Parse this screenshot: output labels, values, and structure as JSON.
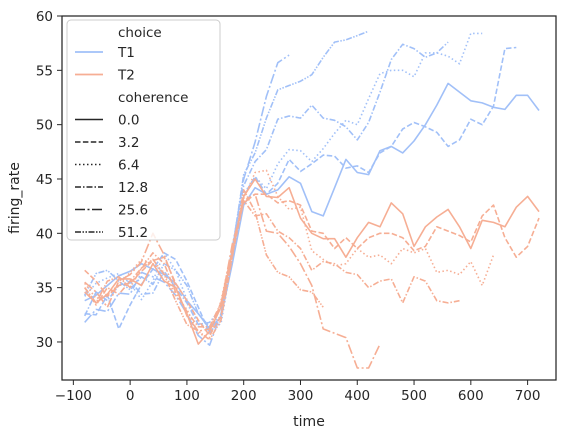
{
  "chart_data": {
    "type": "line",
    "xlabel": "time",
    "ylabel": "firing_rate",
    "xlim": [
      -120,
      750
    ],
    "ylim": [
      26.5,
      60
    ],
    "xticks": [
      -100,
      0,
      100,
      200,
      300,
      400,
      500,
      600,
      700
    ],
    "yticks": [
      30,
      35,
      40,
      45,
      50,
      55,
      60
    ],
    "grid": false,
    "legend_position": "top-left",
    "hue": {
      "title": "choice",
      "levels": [
        {
          "label": "T1",
          "color": "#a1c0f8"
        },
        {
          "label": "T2",
          "color": "#f6ae94"
        }
      ]
    },
    "style": {
      "title": "coherence",
      "levels": [
        {
          "label": "0.0",
          "dash": "solid"
        },
        {
          "label": "3.2",
          "dash": "dashed"
        },
        {
          "label": "6.4",
          "dash": "dotted"
        },
        {
          "label": "12.8",
          "dash": "dashdot"
        },
        {
          "label": "25.6",
          "dash": "longdashdot"
        },
        {
          "label": "51.2",
          "dash": "dashdotdot"
        }
      ]
    },
    "series": [
      {
        "choice": "T1",
        "coherence": "0.0",
        "x": [
          -80,
          -60,
          -40,
          -20,
          0,
          20,
          40,
          60,
          80,
          100,
          120,
          140,
          160,
          180,
          200,
          220,
          240,
          260,
          280,
          300,
          320,
          340,
          360,
          380,
          400,
          420,
          440,
          460,
          480,
          500,
          520,
          540,
          560,
          580,
          600,
          620,
          640,
          660,
          680,
          700,
          720
        ],
        "y": [
          33.8,
          34.3,
          35.2,
          36.1,
          36.5,
          37.2,
          36.7,
          36.2,
          35.4,
          33.8,
          32.6,
          31.2,
          32.3,
          37.2,
          42.6,
          44.2,
          43.6,
          44.0,
          45.2,
          44.6,
          42.0,
          41.6,
          44.2,
          46.8,
          45.6,
          45.4,
          47.6,
          48.0,
          47.4,
          48.5,
          50.0,
          51.8,
          53.8,
          53.0,
          52.2,
          52.0,
          51.6,
          51.4,
          52.7,
          52.7,
          51.3
        ]
      },
      {
        "choice": "T1",
        "coherence": "3.2",
        "x": [
          -80,
          -60,
          -40,
          -20,
          0,
          20,
          40,
          60,
          80,
          100,
          120,
          140,
          160,
          180,
          200,
          220,
          240,
          260,
          280,
          300,
          320,
          340,
          360,
          380,
          400,
          420,
          440,
          460,
          480,
          500,
          520,
          540,
          560,
          580,
          600,
          620,
          640,
          660,
          680
        ],
        "y": [
          32.6,
          32.5,
          34.3,
          31.2,
          33.4,
          35.3,
          36.7,
          38.2,
          37.6,
          35.6,
          33.2,
          30.8,
          32.3,
          37.6,
          43.4,
          45.2,
          43.6,
          44.6,
          46.8,
          45.7,
          46.4,
          47.2,
          47.1,
          46.0,
          46.2,
          45.6,
          47.4,
          48.0,
          49.6,
          50.2,
          49.8,
          49.3,
          48.0,
          48.6,
          50.5,
          50.0,
          51.7,
          57.0,
          57.1
        ]
      },
      {
        "choice": "T1",
        "coherence": "6.4",
        "x": [
          -80,
          -60,
          -40,
          -20,
          0,
          20,
          40,
          60,
          80,
          100,
          120,
          140,
          160,
          180,
          200,
          220,
          240,
          260,
          280,
          300,
          320,
          340,
          360,
          380,
          400,
          420,
          440,
          460,
          480,
          500,
          520,
          540,
          560,
          580,
          600,
          620
        ],
        "y": [
          34.2,
          35.4,
          35.9,
          36.3,
          35.4,
          33.9,
          35.6,
          38.2,
          36.6,
          33.9,
          31.8,
          31.0,
          31.7,
          37.6,
          43.6,
          45.2,
          44.1,
          46.4,
          47.7,
          47.6,
          46.6,
          47.8,
          49.2,
          50.4,
          50.0,
          52.4,
          54.7,
          55.0,
          55.0,
          54.4,
          56.6,
          56.6,
          56.3,
          55.6,
          58.4,
          58.4
        ]
      },
      {
        "choice": "T1",
        "coherence": "12.8",
        "x": [
          -80,
          -60,
          -40,
          -20,
          0,
          20,
          40,
          60,
          80,
          100,
          120,
          140,
          160,
          180,
          200,
          220,
          240,
          260,
          280,
          300,
          320,
          340,
          360,
          380,
          400,
          420,
          440,
          460,
          480,
          500,
          520,
          540,
          560
        ],
        "y": [
          32.4,
          34.6,
          33.8,
          35.2,
          35.6,
          34.4,
          34.5,
          36.5,
          35.0,
          33.6,
          31.6,
          31.8,
          33.1,
          38.6,
          44.4,
          46.6,
          47.7,
          50.5,
          50.8,
          50.6,
          51.8,
          50.6,
          50.4,
          49.8,
          48.6,
          50.2,
          53.0,
          56.0,
          57.4,
          57.0,
          56.2,
          56.6,
          57.6
        ]
      },
      {
        "choice": "T1",
        "coherence": "25.6",
        "x": [
          -80,
          -60,
          -40,
          -20,
          0,
          20,
          40,
          60,
          80,
          100,
          120,
          140,
          160,
          180,
          200,
          220,
          240,
          260,
          280
        ],
        "y": [
          31.8,
          33.0,
          32.8,
          34.5,
          34.4,
          36.4,
          36.0,
          35.5,
          34.3,
          32.6,
          30.6,
          29.7,
          32.6,
          38.6,
          45.0,
          48.4,
          52.6,
          55.7,
          56.4
        ]
      },
      {
        "choice": "T1",
        "coherence": "51.2",
        "x": [
          -80,
          -60,
          -40,
          -20,
          0,
          20,
          40,
          60,
          80,
          100,
          120,
          140,
          160,
          180,
          200,
          220,
          240,
          260,
          280,
          300,
          320,
          340,
          360,
          380,
          400,
          420
        ],
        "y": [
          34.3,
          36.3,
          36.6,
          35.6,
          34.8,
          36.0,
          35.3,
          37.2,
          36.6,
          35.2,
          32.6,
          31.4,
          32.4,
          38.4,
          45.4,
          47.4,
          50.6,
          53.2,
          53.6,
          54.0,
          54.6,
          56.2,
          57.6,
          57.8,
          58.2,
          58.6
        ]
      },
      {
        "choice": "T2",
        "coherence": "0.0",
        "x": [
          -80,
          -60,
          -40,
          -20,
          0,
          20,
          40,
          60,
          80,
          100,
          120,
          140,
          160,
          180,
          200,
          220,
          240,
          260,
          280,
          300,
          320,
          340,
          360,
          380,
          400,
          420,
          440,
          460,
          480,
          500,
          520,
          540,
          560,
          580,
          600,
          620,
          640,
          660,
          680,
          700,
          720
        ],
        "y": [
          34.6,
          33.6,
          34.4,
          35.8,
          35.8,
          35.2,
          37.2,
          35.6,
          35.0,
          32.6,
          29.8,
          31.0,
          33.2,
          38.2,
          43.4,
          45.0,
          43.4,
          43.3,
          44.2,
          41.4,
          40.0,
          39.5,
          39.5,
          37.8,
          39.6,
          41.0,
          40.6,
          42.8,
          41.8,
          38.8,
          40.6,
          41.5,
          42.2,
          40.6,
          38.6,
          41.2,
          41.0,
          40.6,
          42.4,
          43.4,
          42.0
        ]
      },
      {
        "choice": "T2",
        "coherence": "3.2",
        "x": [
          -80,
          -60,
          -40,
          -20,
          0,
          20,
          40,
          60,
          80,
          100,
          120,
          140,
          160,
          180,
          200,
          220,
          240,
          260,
          280,
          300,
          320,
          340,
          360,
          380,
          400,
          420,
          440,
          460,
          480,
          500,
          520,
          540,
          560,
          580,
          600,
          620,
          640,
          660,
          680,
          700,
          720
        ],
        "y": [
          36.6,
          35.6,
          34.2,
          35.2,
          35.4,
          36.5,
          37.5,
          37.8,
          35.4,
          33.8,
          32.0,
          30.6,
          32.4,
          38.0,
          43.0,
          43.6,
          43.6,
          42.8,
          43.0,
          42.6,
          40.2,
          40.0,
          38.6,
          39.6,
          38.6,
          39.6,
          40.0,
          40.0,
          39.6,
          38.4,
          38.8,
          40.6,
          40.2,
          39.8,
          39.2,
          41.6,
          42.6,
          39.6,
          37.8,
          38.8,
          41.4
        ]
      },
      {
        "choice": "T2",
        "coherence": "6.4",
        "x": [
          -80,
          -60,
          -40,
          -20,
          0,
          20,
          40,
          60,
          80,
          100,
          120,
          140,
          160,
          180,
          200,
          220,
          240,
          260,
          280,
          300,
          320,
          340,
          360,
          380,
          400,
          420,
          440,
          460,
          480,
          500,
          520,
          540,
          560,
          580,
          600,
          620,
          640
        ],
        "y": [
          35.4,
          34.0,
          34.3,
          35.3,
          36.4,
          37.6,
          37.2,
          36.4,
          34.3,
          33.0,
          30.8,
          30.4,
          33.8,
          38.6,
          43.2,
          45.6,
          45.8,
          43.4,
          42.2,
          42.4,
          38.4,
          37.6,
          37.0,
          37.2,
          38.6,
          37.8,
          38.0,
          37.2,
          38.6,
          38.2,
          38.6,
          36.4,
          36.6,
          36.2,
          37.4,
          35.2,
          38.0
        ]
      },
      {
        "choice": "T2",
        "coherence": "12.8",
        "x": [
          -80,
          -60,
          -40,
          -20,
          0,
          20,
          40,
          60,
          80,
          100,
          120,
          140,
          160,
          180,
          200,
          220,
          240,
          260,
          280,
          300,
          320,
          340,
          360,
          380,
          400,
          420,
          440,
          460,
          480,
          500,
          520,
          540,
          560,
          580
        ],
        "y": [
          35.0,
          33.4,
          35.0,
          34.4,
          35.6,
          36.8,
          38.2,
          37.2,
          34.6,
          32.8,
          31.4,
          31.4,
          33.6,
          38.4,
          43.0,
          41.6,
          41.8,
          40.2,
          39.6,
          38.6,
          36.6,
          37.4,
          37.2,
          36.4,
          36.2,
          35.0,
          35.6,
          35.8,
          33.6,
          36.0,
          35.6,
          33.8,
          33.6,
          33.8
        ]
      },
      {
        "choice": "T2",
        "coherence": "25.6",
        "x": [
          -80,
          -60,
          -40,
          -20,
          0,
          20,
          40,
          60,
          80,
          100,
          120,
          140,
          160,
          180,
          200,
          220,
          240,
          260,
          280,
          300,
          320,
          340,
          360,
          380,
          400,
          420,
          440
        ],
        "y": [
          35.5,
          34.6,
          33.2,
          35.6,
          36.2,
          37.4,
          40.0,
          38.0,
          35.2,
          32.4,
          31.0,
          31.2,
          33.4,
          39.0,
          42.8,
          43.6,
          40.2,
          40.0,
          38.8,
          37.2,
          35.2,
          31.2,
          30.8,
          30.4,
          27.6,
          27.6,
          29.8
        ]
      },
      {
        "choice": "T2",
        "coherence": "51.2",
        "x": [
          -80,
          -60,
          -40,
          -20,
          0,
          20,
          40,
          60,
          80,
          100,
          120,
          140,
          160,
          180,
          200,
          220,
          240,
          260,
          280,
          300,
          320,
          340
        ],
        "y": [
          35.0,
          33.6,
          35.6,
          36.0,
          35.0,
          36.8,
          37.6,
          36.2,
          33.8,
          31.6,
          31.0,
          30.2,
          32.0,
          37.8,
          44.0,
          42.0,
          38.0,
          36.4,
          36.0,
          34.8,
          34.6,
          33.2
        ]
      }
    ]
  }
}
